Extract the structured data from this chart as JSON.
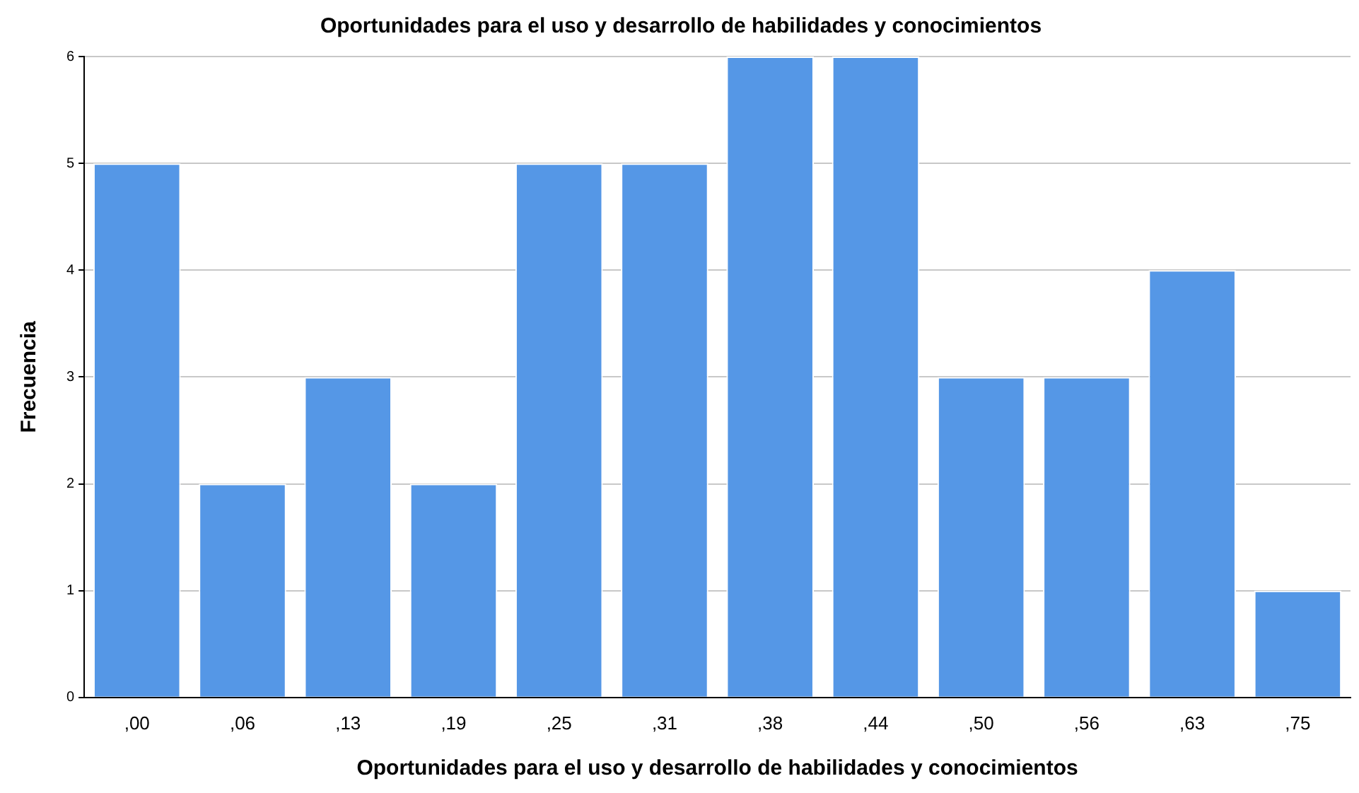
{
  "chart_data": {
    "type": "bar",
    "title": "Oportunidades para el uso y desarrollo de habilidades y conocimientos",
    "xlabel": "Oportunidades para el uso y desarrollo de habilidades y conocimientos",
    "ylabel": "Frecuencia",
    "categories": [
      ",00",
      ",06",
      ",13",
      ",19",
      ",25",
      ",31",
      ",38",
      ",44",
      ",50",
      ",56",
      ",63",
      ",75"
    ],
    "values": [
      5,
      2,
      3,
      2,
      5,
      5,
      6,
      6,
      3,
      3,
      4,
      1
    ],
    "color": "#5597e6",
    "ylim": [
      0,
      6
    ],
    "yticks": [
      0,
      1,
      2,
      3,
      4,
      5,
      6
    ],
    "grid": "y",
    "legend": false
  }
}
